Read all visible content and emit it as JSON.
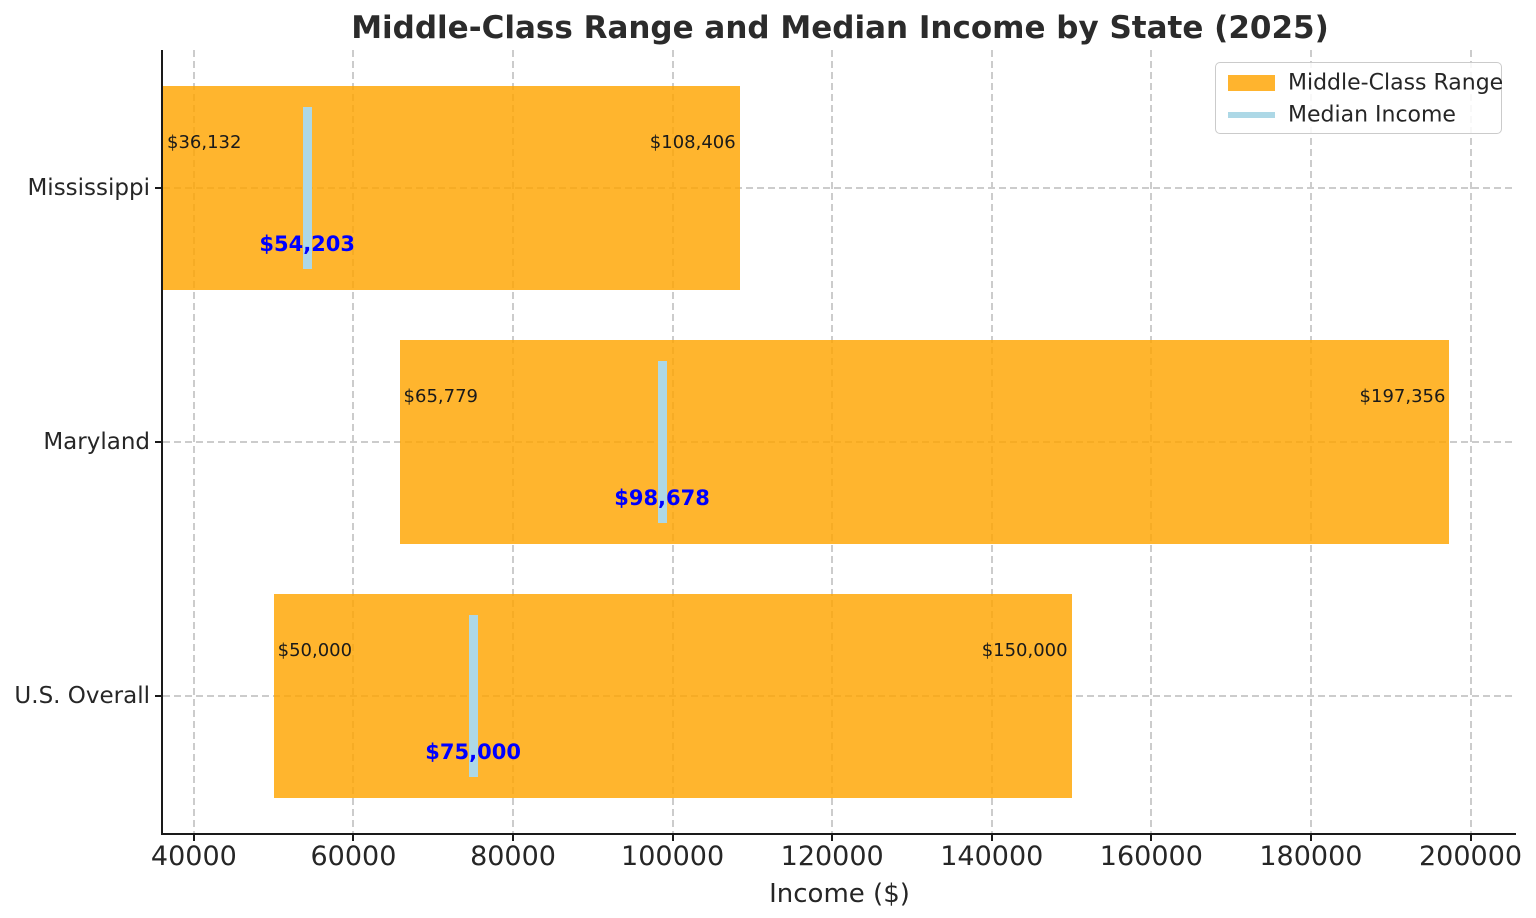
{
  "chart_data": {
    "type": "bar",
    "variant": "horizontal_range_bar",
    "title": "Middle-Class Range and Median Income by State (2025)",
    "xlabel": "Income ($)",
    "ylabel": "",
    "categories": [
      "Mississippi",
      "Maryland",
      "U.S. Overall"
    ],
    "rows": [
      {
        "category": "Mississippi",
        "low": 36132,
        "high": 108406,
        "median": 54203,
        "low_label": "$36,132",
        "high_label": "$108,406",
        "median_label": "$54,203"
      },
      {
        "category": "Maryland",
        "low": 65779,
        "high": 197356,
        "median": 98678,
        "low_label": "$65,779",
        "high_label": "$197,356",
        "median_label": "$98,678"
      },
      {
        "category": "U.S. Overall",
        "low": 50000,
        "high": 150000,
        "median": 75000,
        "low_label": "$50,000",
        "high_label": "$150,000",
        "median_label": "$75,000"
      }
    ],
    "series": [
      {
        "name": "Middle-Class Range",
        "role": "range",
        "low": [
          36132,
          65779,
          50000
        ],
        "high": [
          108406,
          197356,
          150000
        ]
      },
      {
        "name": "Median Income",
        "role": "median",
        "values": [
          54203,
          98678,
          75000
        ]
      }
    ],
    "x_ticks": [
      {
        "value": 40000,
        "label": "40000"
      },
      {
        "value": 60000,
        "label": "60000"
      },
      {
        "value": 80000,
        "label": "80000"
      },
      {
        "value": 100000,
        "label": "100000"
      },
      {
        "value": 120000,
        "label": "120000"
      },
      {
        "value": 140000,
        "label": "140000"
      },
      {
        "value": 160000,
        "label": "160000"
      },
      {
        "value": 180000,
        "label": "180000"
      },
      {
        "value": 200000,
        "label": "200000"
      }
    ],
    "xlim": [
      36132,
      205700
    ],
    "grid": true,
    "grid_style": "dashed",
    "legend": {
      "position": "upper right",
      "items": [
        {
          "label": "Middle-Class Range",
          "swatch": "patch",
          "color": "#FFB42E"
        },
        {
          "label": "Median Income",
          "swatch": "line",
          "color": "#ADD8E6"
        }
      ]
    },
    "colors": {
      "range_bar": "rgba(255,165,0,0.82)",
      "range_bar_solid": "#FFB42E",
      "median_line": "#ADD8E6",
      "median_label": "#0000FF",
      "value_label": "#1a1a1a",
      "grid": "#cccccc",
      "axis": "#1a1a1a"
    }
  }
}
